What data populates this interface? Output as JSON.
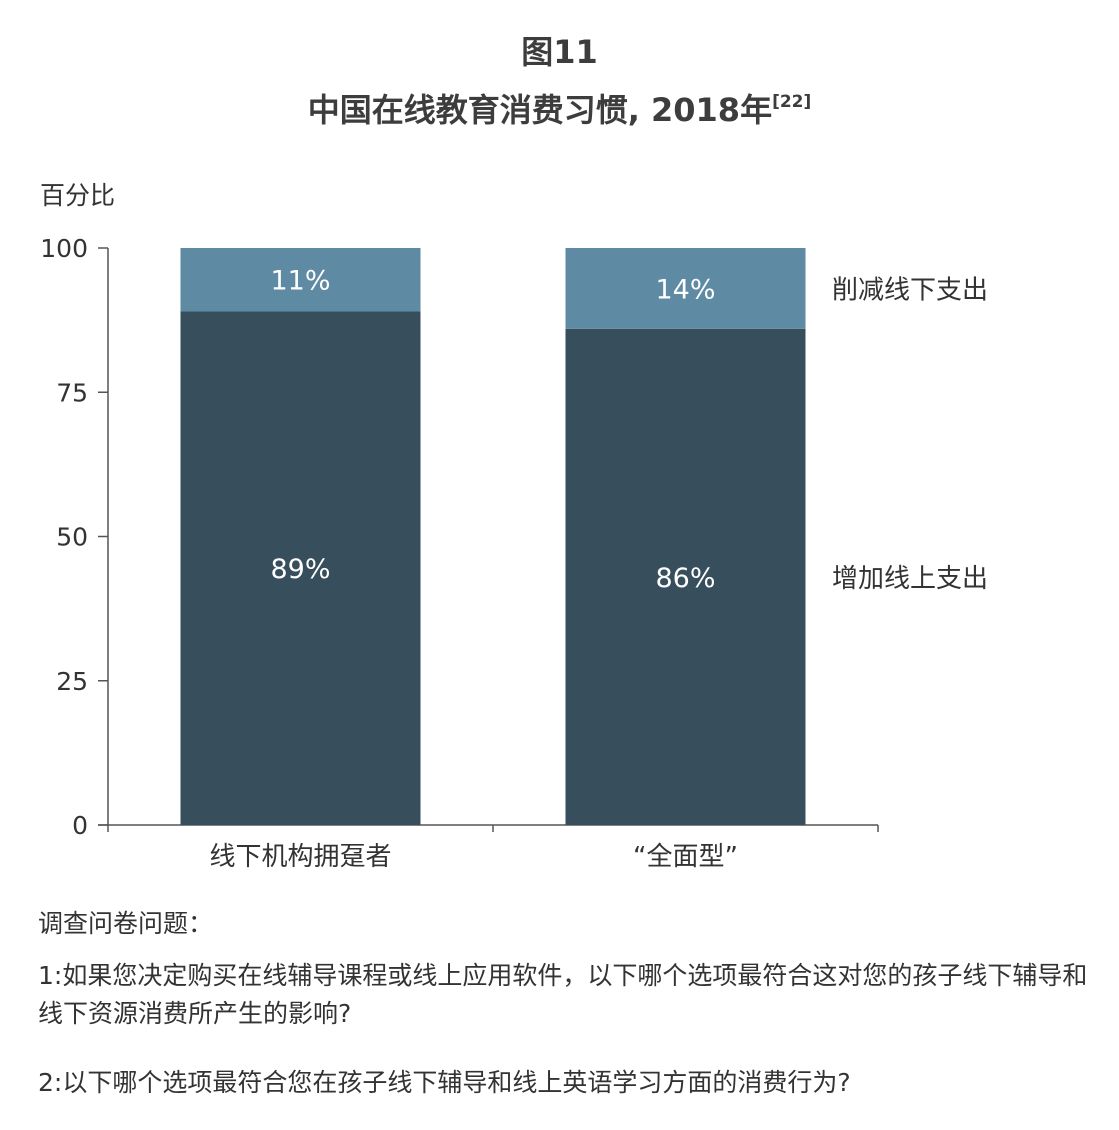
{
  "figure_label": "图11",
  "title": "中国在线教育消费习惯, 2018年",
  "title_ref": "[22]",
  "chart_data": {
    "type": "bar",
    "stacked": true,
    "ylabel": "百分比",
    "ylim": [
      0,
      100
    ],
    "yticks": [
      0,
      25,
      50,
      75,
      100
    ],
    "categories": [
      "线下机构拥趸者",
      "“全面型”"
    ],
    "series": [
      {
        "name": "增加线上支出",
        "values": [
          89,
          86
        ],
        "labels": [
          "89%",
          "86%"
        ],
        "color": "#374e5c"
      },
      {
        "name": "削减线下支出",
        "values": [
          11,
          14
        ],
        "labels": [
          "11%",
          "14%"
        ],
        "color": "#5f8aa4"
      }
    ],
    "legend_position": "right"
  },
  "notes": {
    "heading": "调查问卷问题：",
    "q1": "1:如果您决定购买在线辅导课程或线上应用软件，以下哪个选项最符合这对您的孩子线下辅导和线下资源消费所产生的影响?",
    "q2": "2:以下哪个选项最符合您在孩子线下辅导和线上英语学习方面的消费行为?"
  }
}
